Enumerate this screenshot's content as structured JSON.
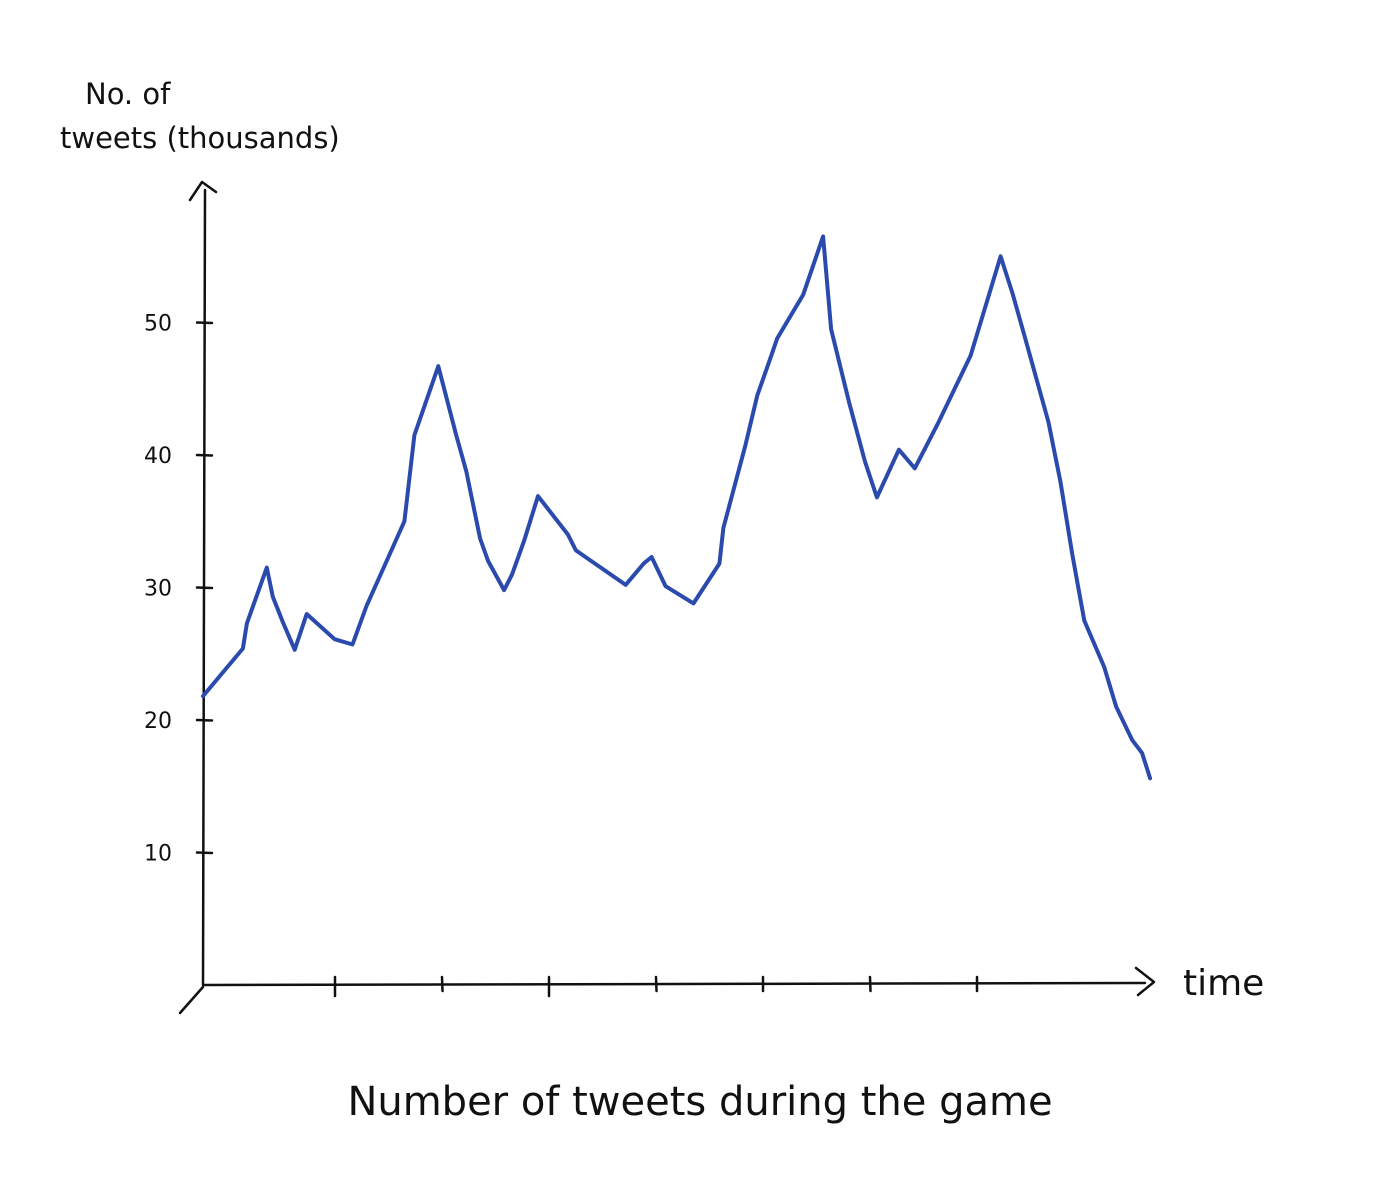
{
  "chart_data": {
    "type": "line",
    "title": "Number of tweets during the game",
    "xlabel": "time",
    "ylabel_lines": [
      "No. of",
      "tweets (thousands)"
    ],
    "y_ticks": [
      10,
      20,
      30,
      40,
      50
    ],
    "ylim": [
      0,
      60
    ],
    "x_tick_count": 7,
    "x_tick_labels": [],
    "line_color": "#2b4aad",
    "axis_color": "#111111",
    "series": [
      {
        "x": [
          0,
          1.0,
          1.1,
          1.6,
          1.75,
          2.0,
          2.3,
          2.6,
          3.3,
          3.75,
          4.1,
          5.05,
          5.3,
          5.9,
          6.35,
          6.6,
          6.95,
          7.15,
          7.55,
          7.75,
          8.05,
          8.4,
          9.15,
          9.35,
          10.6,
          11.05,
          11.25,
          11.6,
          12.3,
          12.95,
          13.05,
          13.6,
          13.9,
          14.25,
          14.4,
          15.05,
          15.55,
          15.75,
          16.2,
          16.6,
          16.9,
          17.45,
          17.85,
          18.45,
          19.25,
          20.0
        ],
        "y": [
          21.8,
          25.4,
          27.3,
          31.5,
          29.3,
          27.4,
          25.3,
          28.0,
          26.1,
          25.7,
          28.6,
          35.0,
          41.5,
          46.7,
          41.5,
          38.8,
          33.7,
          32.0,
          29.8,
          31.0,
          33.5,
          36.9,
          34.0,
          32.8,
          30.2,
          31.8,
          32.3,
          30.1,
          28.8,
          31.8,
          34.5,
          40.7,
          44.5,
          47.5,
          48.8,
          52.1,
          56.5,
          49.5,
          44.0,
          39.5,
          36.8,
          40.4,
          39.0,
          42.5,
          47.5,
          55.0
        ]
      }
    ],
    "series_tail": {
      "x": [
        20.0,
        20.3,
        20.6,
        21.2,
        21.5,
        21.8,
        22.1,
        22.6,
        22.9,
        23.3,
        23.55,
        23.75
      ],
      "y": [
        55.0,
        52.2,
        49.0,
        42.5,
        38.0,
        32.5,
        27.5,
        24.0,
        21.0,
        18.5,
        17.5,
        15.6
      ]
    },
    "xlim": [
      0,
      24.5
    ],
    "grid": false,
    "legend": "none"
  }
}
